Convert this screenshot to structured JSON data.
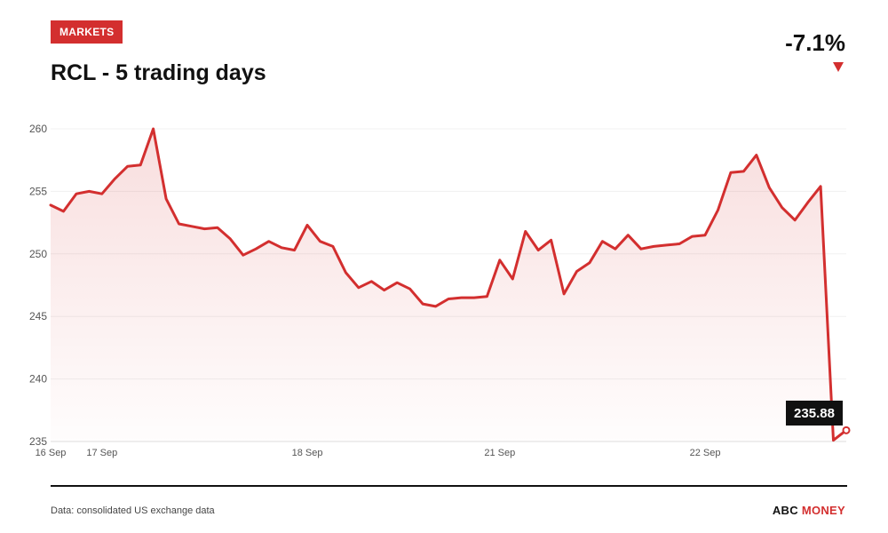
{
  "header": {
    "badge": "MARKETS",
    "title": "RCL - 5 trading days",
    "change": "-7.1%"
  },
  "footer": {
    "source": "Data: consolidated US exchange data",
    "brand_part1": "ABC",
    "brand_part2": "MONEY"
  },
  "colors": {
    "accent": "#d32f2f",
    "text": "#111111",
    "grid": "#eeeeee"
  },
  "icons": {
    "change_direction": "down-triangle-icon"
  },
  "chart_data": {
    "type": "area",
    "title": "RCL - 5 trading days",
    "xlabel": "",
    "ylabel": "",
    "ylim": [
      235,
      260
    ],
    "yticks": [
      260,
      255,
      250,
      245,
      240,
      235
    ],
    "grid": true,
    "xticks": [
      {
        "label": "16 Sep",
        "index": 0
      },
      {
        "label": "17 Sep",
        "index": 4
      },
      {
        "label": "18 Sep",
        "index": 20
      },
      {
        "label": "21 Sep",
        "index": 35
      },
      {
        "label": "22 Sep",
        "index": 51
      }
    ],
    "last_value_label": "235.88",
    "series": [
      {
        "values": [
          253.9,
          253.4,
          254.8,
          255.0,
          254.8,
          256.0,
          257.0,
          257.1,
          260.0,
          254.4,
          252.4,
          252.2,
          252.0,
          252.1,
          251.2,
          249.9,
          250.4,
          251.0,
          250.5,
          250.3,
          252.3,
          251.0,
          250.6,
          248.5,
          247.3,
          247.8,
          247.1,
          247.7,
          247.2,
          246.0,
          245.8,
          246.4,
          246.5,
          246.5,
          246.6,
          249.5,
          248.0,
          251.8,
          250.3,
          251.1,
          246.8,
          248.6,
          249.3,
          251.0,
          250.4,
          251.5,
          250.4,
          250.6,
          250.7,
          250.8,
          251.4,
          251.5,
          253.5,
          256.5,
          256.6,
          257.9,
          255.3,
          253.7,
          252.7,
          254.1,
          255.4,
          235.1,
          235.9
        ]
      }
    ]
  }
}
